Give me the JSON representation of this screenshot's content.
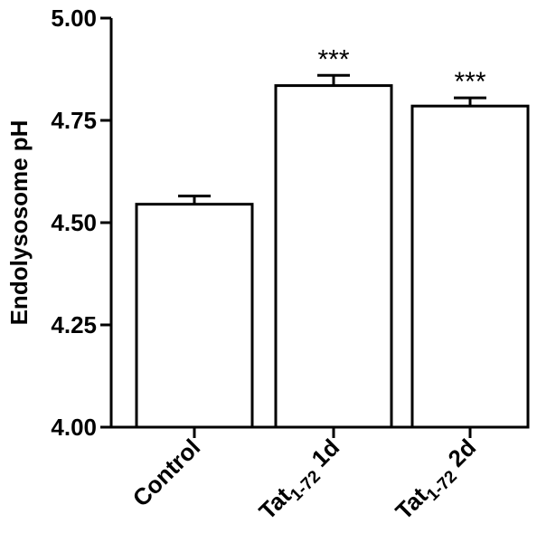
{
  "chart_data": {
    "type": "bar",
    "ylabel": "Endolysosome pH",
    "ylim": [
      4.0,
      5.0
    ],
    "yticks": [
      "4.00",
      "4.25",
      "4.50",
      "4.75",
      "5.00"
    ],
    "grid": false,
    "categories": [
      {
        "main": "Control",
        "sub": "",
        "suffix": ""
      },
      {
        "main": "Tat",
        "sub": "1-72",
        "suffix": " 1d"
      },
      {
        "main": "Tat",
        "sub": "1-72",
        "suffix": " 2d"
      }
    ],
    "values": [
      4.545,
      4.835,
      4.785
    ],
    "errors": [
      0.02,
      0.025,
      0.02
    ],
    "annotations": [
      "",
      "***",
      "***"
    ],
    "bar_fill": "#ffffff",
    "bar_stroke": "#000000"
  }
}
